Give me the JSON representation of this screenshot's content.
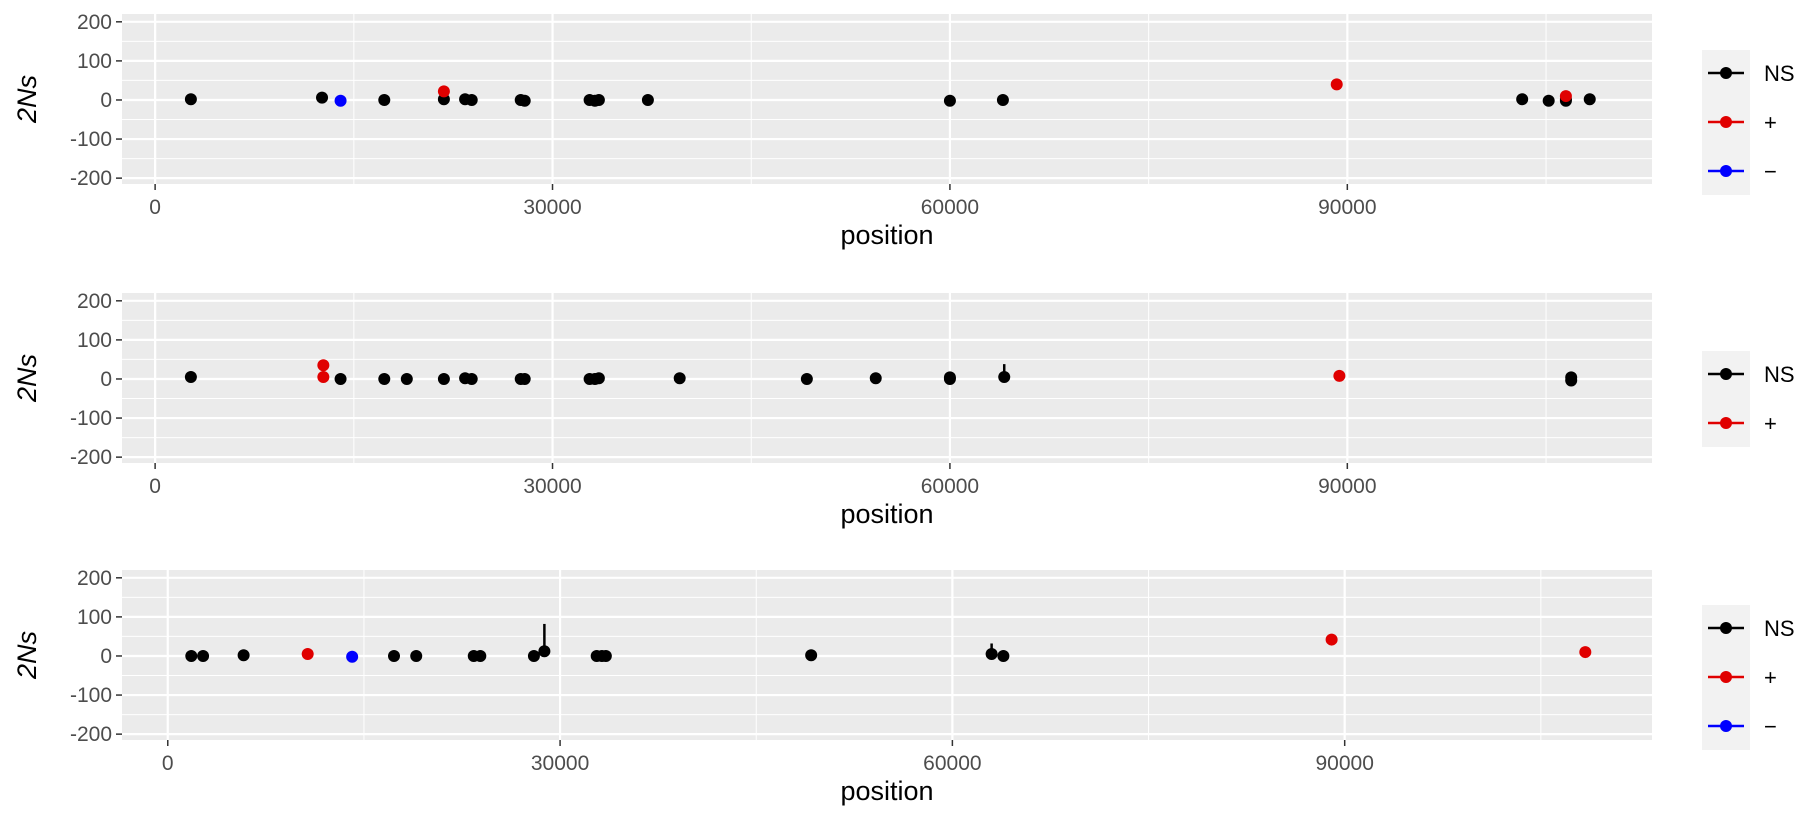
{
  "colors": {
    "NS": "#000000",
    "+": "#e00000",
    "−": "#0000ff",
    "panel_bg": "#ebebeb",
    "grid": "#ffffff",
    "legend_bg": "#f2f2f2"
  },
  "chart_data": [
    {
      "type": "scatter",
      "title": "",
      "xlabel": "position",
      "ylabel": "2Ns",
      "xlim": [
        -2500,
        113000
      ],
      "ylim": [
        -215,
        220
      ],
      "x_ticks": [
        0,
        30000,
        60000,
        90000
      ],
      "x_tick_labels": [
        "0",
        "30000",
        "60000",
        "90000"
      ],
      "y_ticks": [
        -200,
        -100,
        0,
        100,
        200
      ],
      "y_tick_labels": [
        "-200",
        "-100",
        "0",
        "100",
        "200"
      ],
      "grid": true,
      "legend": "right",
      "series": [
        {
          "name": "NS",
          "points": [
            {
              "x": 2700,
              "y": 2
            },
            {
              "x": 12600,
              "y": 6
            },
            {
              "x": 17300,
              "y": 0
            },
            {
              "x": 21800,
              "y": 2
            },
            {
              "x": 23400,
              "y": 2
            },
            {
              "x": 23900,
              "y": 0
            },
            {
              "x": 27600,
              "y": 0
            },
            {
              "x": 27900,
              "y": -2
            },
            {
              "x": 32800,
              "y": 0
            },
            {
              "x": 33200,
              "y": -2
            },
            {
              "x": 33500,
              "y": 0
            },
            {
              "x": 37200,
              "y": 0
            },
            {
              "x": 60000,
              "y": -2
            },
            {
              "x": 64000,
              "y": 0
            },
            {
              "x": 103200,
              "y": 2
            },
            {
              "x": 105200,
              "y": -2
            },
            {
              "x": 106500,
              "y": -2
            },
            {
              "x": 106500,
              "y": 2
            },
            {
              "x": 108300,
              "y": 2
            }
          ]
        },
        {
          "name": "+",
          "points": [
            {
              "x": 21800,
              "y": 22
            },
            {
              "x": 89200,
              "y": 40
            },
            {
              "x": 106500,
              "y": 10
            }
          ]
        },
        {
          "name": "−",
          "points": [
            {
              "x": 14000,
              "y": -2
            }
          ]
        }
      ]
    },
    {
      "type": "scatter",
      "title": "",
      "xlabel": "position",
      "ylabel": "2Ns",
      "xlim": [
        -2500,
        113000
      ],
      "ylim": [
        -215,
        220
      ],
      "x_ticks": [
        0,
        30000,
        60000,
        90000
      ],
      "x_tick_labels": [
        "0",
        "30000",
        "60000",
        "90000"
      ],
      "y_ticks": [
        -200,
        -100,
        0,
        100,
        200
      ],
      "y_tick_labels": [
        "-200",
        "-100",
        "0",
        "100",
        "200"
      ],
      "grid": true,
      "legend": "right",
      "series": [
        {
          "name": "NS",
          "points": [
            {
              "x": 2700,
              "y": 5
            },
            {
              "x": 14000,
              "y": 0
            },
            {
              "x": 17300,
              "y": 0
            },
            {
              "x": 19000,
              "y": 0
            },
            {
              "x": 21800,
              "y": 0
            },
            {
              "x": 23400,
              "y": 2
            },
            {
              "x": 23900,
              "y": 0
            },
            {
              "x": 27600,
              "y": 0
            },
            {
              "x": 27900,
              "y": 0
            },
            {
              "x": 32800,
              "y": 0
            },
            {
              "x": 33200,
              "y": 0
            },
            {
              "x": 33500,
              "y": 2
            },
            {
              "x": 39600,
              "y": 2
            },
            {
              "x": 49200,
              "y": 0
            },
            {
              "x": 54400,
              "y": 2
            },
            {
              "x": 60000,
              "y": 0
            },
            {
              "x": 60000,
              "y": 4
            },
            {
              "x": 64100,
              "y": 5,
              "y_low": 0,
              "y_high": 38
            },
            {
              "x": 106900,
              "y": -4
            },
            {
              "x": 106900,
              "y": 4
            }
          ]
        },
        {
          "name": "+",
          "points": [
            {
              "x": 12700,
              "y": 35
            },
            {
              "x": 12700,
              "y": 5
            },
            {
              "x": 89400,
              "y": 8
            }
          ]
        }
      ]
    },
    {
      "type": "scatter",
      "title": "",
      "xlabel": "position",
      "ylabel": "2Ns",
      "xlim": [
        -3500,
        113500
      ],
      "ylim": [
        -215,
        220
      ],
      "x_ticks": [
        0,
        30000,
        60000,
        90000
      ],
      "x_tick_labels": [
        "0",
        "30000",
        "60000",
        "90000"
      ],
      "y_ticks": [
        -200,
        -100,
        0,
        100,
        200
      ],
      "y_tick_labels": [
        "-200",
        "-100",
        "0",
        "100",
        "200"
      ],
      "grid": true,
      "legend": "right",
      "series": [
        {
          "name": "NS",
          "points": [
            {
              "x": 1800,
              "y": 0
            },
            {
              "x": 2700,
              "y": 0
            },
            {
              "x": 5800,
              "y": 2
            },
            {
              "x": 17300,
              "y": 0
            },
            {
              "x": 19000,
              "y": 0
            },
            {
              "x": 23400,
              "y": 0
            },
            {
              "x": 23900,
              "y": 0
            },
            {
              "x": 28000,
              "y": 0
            },
            {
              "x": 28800,
              "y": 12,
              "y_low": 0,
              "y_high": 82
            },
            {
              "x": 32800,
              "y": 0
            },
            {
              "x": 33200,
              "y": 0
            },
            {
              "x": 33500,
              "y": 0
            },
            {
              "x": 49200,
              "y": 2
            },
            {
              "x": 63000,
              "y": 5,
              "y_low": 0,
              "y_high": 32
            },
            {
              "x": 63900,
              "y": 0
            }
          ]
        },
        {
          "name": "+",
          "points": [
            {
              "x": 10700,
              "y": 5
            },
            {
              "x": 89000,
              "y": 42
            },
            {
              "x": 108400,
              "y": 10
            }
          ]
        },
        {
          "name": "−",
          "points": [
            {
              "x": 14100,
              "y": -2
            }
          ]
        }
      ]
    }
  ]
}
